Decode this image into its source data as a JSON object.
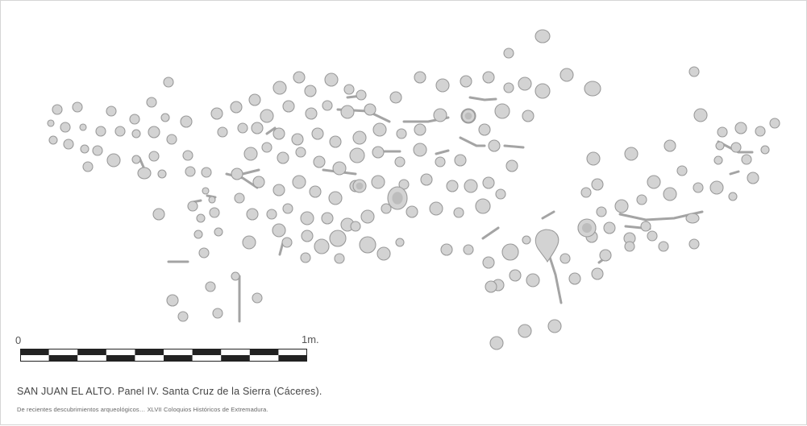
{
  "figure": {
    "scale_start_label": "0",
    "scale_end_label": "1m.",
    "caption_title": "SAN JUAN EL ALTO. Panel IV. Santa Cruz de la Sierra (Cáceres).",
    "caption_source": "De recientes descubrimientos arqueológicos… XLVII Coloquios Históricos de Extremadura.",
    "colors": {
      "cup_fill": "#d3d3d3",
      "cup_outline": "#9a9a9a",
      "scale_dark": "#222222",
      "scale_light": "#ffffff"
    },
    "icons": [
      "cup-mark",
      "groove-channel",
      "scale-bar"
    ]
  }
}
